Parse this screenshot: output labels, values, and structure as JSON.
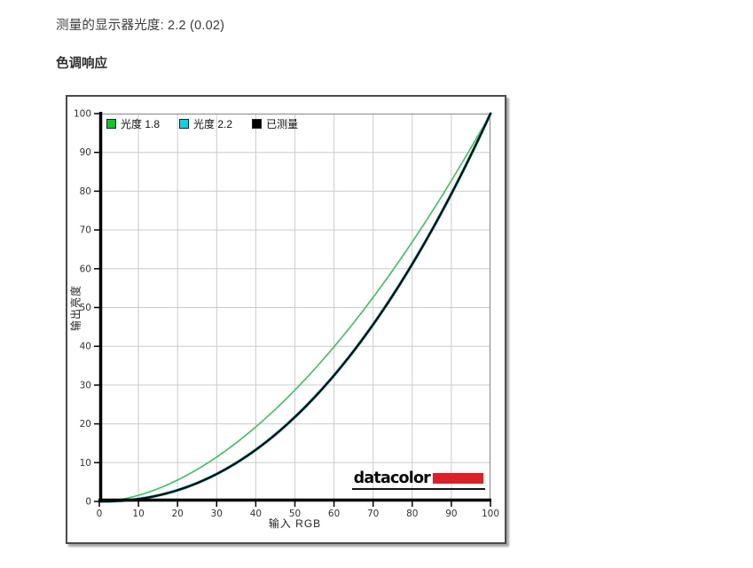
{
  "page": {
    "title_line": "测量的显示器光度:  2.2 (0.02)",
    "section_title": "色调响应"
  },
  "chart_data": {
    "type": "line",
    "title": "",
    "xlabel": "输入 RGB",
    "ylabel": "输出亮度",
    "xlim": [
      0,
      100
    ],
    "ylim": [
      0,
      100
    ],
    "xticks": [
      0,
      10,
      20,
      30,
      40,
      50,
      60,
      70,
      80,
      90,
      100
    ],
    "yticks": [
      0,
      10,
      20,
      30,
      40,
      50,
      60,
      70,
      80,
      90,
      100
    ],
    "grid": true,
    "legend_position": "top-left-inside",
    "x": [
      0,
      10,
      20,
      30,
      40,
      50,
      60,
      70,
      80,
      90,
      100
    ],
    "series": [
      {
        "name": "光度 1.8",
        "gamma": 1.8,
        "swatch_color": "#00cc22",
        "line_color": "#3fbf5f",
        "line_width": 1.6,
        "values": [
          0,
          1.6,
          5.5,
          11.5,
          19.2,
          28.7,
          39.9,
          52.6,
          66.9,
          82.7,
          100
        ]
      },
      {
        "name": "光度 2.2",
        "gamma": 2.2,
        "swatch_color": "#00d8e8",
        "line_color": "#2ad8d8",
        "line_width": 3.4,
        "values": [
          0,
          0.6,
          2.9,
          7.1,
          13.3,
          21.8,
          32.5,
          45.6,
          61.2,
          79.3,
          100
        ]
      },
      {
        "name": "已测量",
        "gamma": 2.2,
        "swatch_color": "#000000",
        "line_color": "#060606",
        "line_width": 2.3,
        "values": [
          0,
          0.6,
          2.9,
          7.1,
          13.3,
          21.8,
          32.5,
          45.6,
          61.2,
          79.3,
          100
        ]
      }
    ],
    "grid_color": "#cccccc",
    "border_color": "#979797",
    "axis_color": "#000000",
    "tick_label_color": "#333333",
    "branding": {
      "logo_text": "datacolor",
      "logo_bar_color": "#da2128"
    }
  }
}
